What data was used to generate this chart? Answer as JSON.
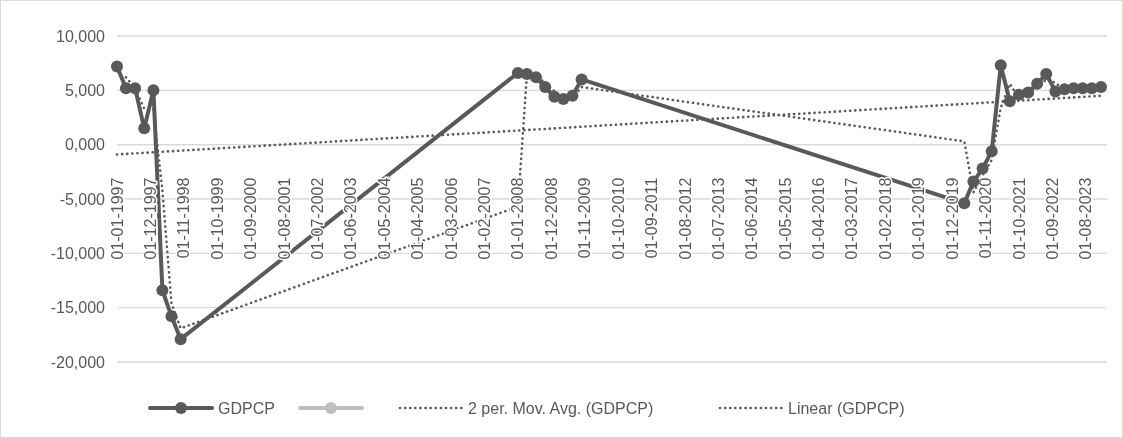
{
  "chart_data": {
    "type": "line",
    "xlim": [
      "1997-01",
      "2024-03"
    ],
    "ylim": [
      -20000,
      10000
    ],
    "yticks": [
      {
        "value": 10000,
        "label": "10,000"
      },
      {
        "value": 5000,
        "label": "5,000"
      },
      {
        "value": 0,
        "label": "0,000"
      },
      {
        "value": -5000,
        "label": "-5,000"
      },
      {
        "value": -10000,
        "label": "-10,000"
      },
      {
        "value": -15000,
        "label": "-15,000"
      },
      {
        "value": -20000,
        "label": "-20,000"
      }
    ],
    "xticks": [
      {
        "value": "1997-01",
        "label": "01-01-1997"
      },
      {
        "value": "1997-12",
        "label": "01-12-1997"
      },
      {
        "value": "1998-11",
        "label": "01-11-1998"
      },
      {
        "value": "1999-10",
        "label": "01-10-1999"
      },
      {
        "value": "2000-09",
        "label": "01-09-2000"
      },
      {
        "value": "2001-08",
        "label": "01-08-2001"
      },
      {
        "value": "2002-07",
        "label": "01-07-2002"
      },
      {
        "value": "2003-06",
        "label": "01-06-2003"
      },
      {
        "value": "2004-05",
        "label": "01-05-2004"
      },
      {
        "value": "2005-04",
        "label": "01-04-2005"
      },
      {
        "value": "2006-03",
        "label": "01-03-2006"
      },
      {
        "value": "2007-02",
        "label": "01-02-2007"
      },
      {
        "value": "2008-01",
        "label": "01-01-2008"
      },
      {
        "value": "2008-12",
        "label": "01-12-2008"
      },
      {
        "value": "2009-11",
        "label": "01-11-2009"
      },
      {
        "value": "2010-10",
        "label": "01-10-2010"
      },
      {
        "value": "2011-09",
        "label": "01-09-2011"
      },
      {
        "value": "2012-08",
        "label": "01-08-2012"
      },
      {
        "value": "2013-07",
        "label": "01-07-2013"
      },
      {
        "value": "2014-06",
        "label": "01-06-2014"
      },
      {
        "value": "2015-05",
        "label": "01-05-2015"
      },
      {
        "value": "2016-04",
        "label": "01-04-2016"
      },
      {
        "value": "2017-03",
        "label": "01-03-2017"
      },
      {
        "value": "2018-02",
        "label": "01-02-2018"
      },
      {
        "value": "2019-01",
        "label": "01-01-2019"
      },
      {
        "value": "2019-12",
        "label": "01-12-2019"
      },
      {
        "value": "2020-11",
        "label": "01-11-2020"
      },
      {
        "value": "2021-10",
        "label": "01-10-2021"
      },
      {
        "value": "2022-09",
        "label": "01-09-2022"
      },
      {
        "value": "2023-08",
        "label": "01-08-2023"
      }
    ],
    "grid": "y",
    "legend": "bottom",
    "series": [
      {
        "name": "GDPCP",
        "color": "#595959",
        "marker": "circle",
        "line_style": "solid",
        "x": [
          "1997-01",
          "1997-04",
          "1997-07",
          "1997-10",
          "1998-01",
          "1998-04",
          "1998-07",
          "1998-10",
          "2008-01",
          "2008-04",
          "2008-07",
          "2008-10",
          "2009-01",
          "2009-04",
          "2009-07",
          "2009-10",
          "2020-04",
          "2020-07",
          "2020-10",
          "2021-01",
          "2021-04",
          "2021-07",
          "2021-10",
          "2022-01",
          "2022-04",
          "2022-07",
          "2022-10",
          "2023-01",
          "2023-04",
          "2023-07",
          "2023-10",
          "2024-01"
        ],
        "values": [
          7200,
          5200,
          5200,
          1500,
          5000,
          -13400,
          -15800,
          -17900,
          6600,
          6500,
          6200,
          5300,
          4400,
          4200,
          4500,
          6000,
          -5400,
          -3400,
          -2200,
          -600,
          7300,
          4000,
          4600,
          4800,
          5600,
          6500,
          4900,
          5100,
          5200,
          5200,
          5200,
          5300
        ]
      },
      {
        "name": "2 per. Mov. Avg. (GDPCP)",
        "color": "#595959",
        "marker": "none",
        "line_style": "dotted",
        "x": [
          "1997-04",
          "1997-07",
          "1997-10",
          "1998-01",
          "1998-04",
          "1998-07",
          "1998-10",
          "2008-01",
          "2008-04",
          "2008-07",
          "2008-10",
          "2009-01",
          "2009-04",
          "2009-07",
          "2009-10",
          "2020-04",
          "2020-07",
          "2020-10",
          "2021-01",
          "2021-04",
          "2021-07",
          "2021-10",
          "2022-01",
          "2022-04",
          "2022-07",
          "2022-10",
          "2023-01",
          "2023-04",
          "2023-07",
          "2023-10",
          "2024-01"
        ],
        "values": [
          6200,
          5200,
          3300,
          3200,
          -4200,
          -14600,
          -16900,
          -5700,
          6500,
          6300,
          5700,
          4900,
          4300,
          4300,
          5300,
          300,
          -4400,
          -2800,
          -1400,
          3400,
          5600,
          4300,
          4700,
          5200,
          6000,
          5700,
          5000,
          5100,
          5200,
          5200,
          5200
        ]
      },
      {
        "name": "Linear (GDPCP)",
        "color": "#595959",
        "marker": "none",
        "line_style": "dotted",
        "x": [
          "1997-01",
          "2024-01"
        ],
        "values": [
          -900,
          4500
        ]
      }
    ]
  }
}
